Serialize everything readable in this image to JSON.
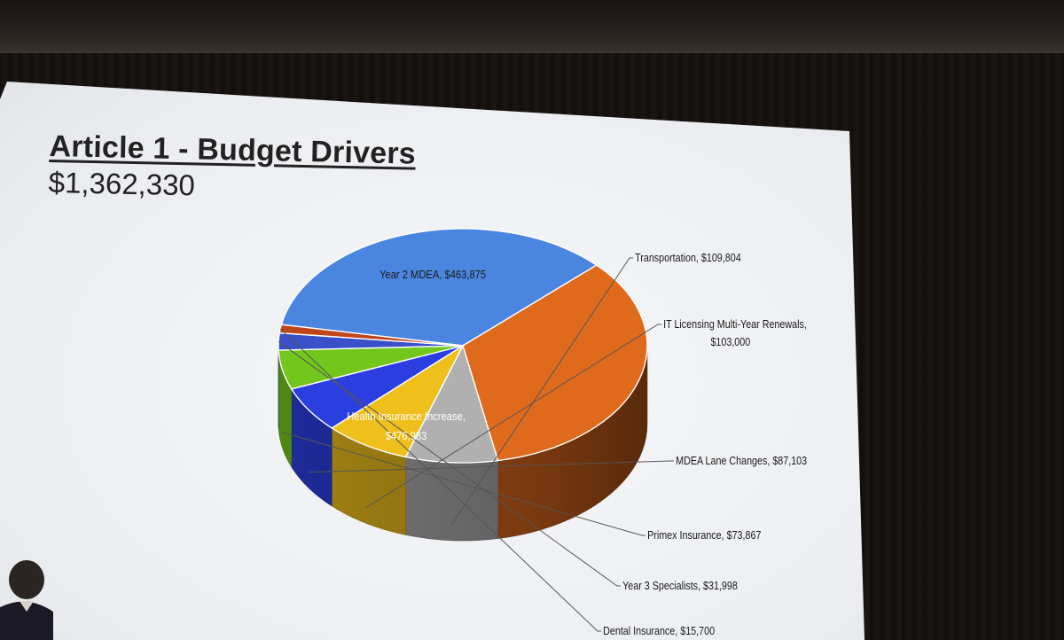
{
  "slide": {
    "title": "Article 1 - Budget Drivers",
    "total": "$1,362,330"
  },
  "chart_data": {
    "type": "pie",
    "style": "3d",
    "slices": [
      {
        "label": "Health Insurance Increase, $476,983",
        "value": 476983,
        "color": "#4a86e0",
        "label_position": "inside"
      },
      {
        "label": "Year 2 MDEA, $463,875",
        "value": 463875,
        "color": "#e06a1c",
        "label_position": "inside"
      },
      {
        "label": "Transportation, $109,804",
        "value": 109804,
        "color": "#b0b0b0",
        "label_position": "outside"
      },
      {
        "label": "IT Licensing Multi-Year Renewals, $103,000",
        "value": 103000,
        "color": "#efbf1c",
        "label_position": "outside"
      },
      {
        "label": "MDEA Lane Changes, $87,103",
        "value": 87103,
        "color": "#2b3fe0",
        "label_position": "outside"
      },
      {
        "label": "Primex Insurance, $73,867",
        "value": 73867,
        "color": "#72c61c",
        "label_position": "outside"
      },
      {
        "label": "Year 3 Specialists, $31,998",
        "value": 31998,
        "color": "#3a50c8",
        "label_position": "outside"
      },
      {
        "label": "Dental Insurance, $15,700",
        "value": 15700,
        "color": "#c0461e",
        "label_position": "outside"
      }
    ]
  }
}
